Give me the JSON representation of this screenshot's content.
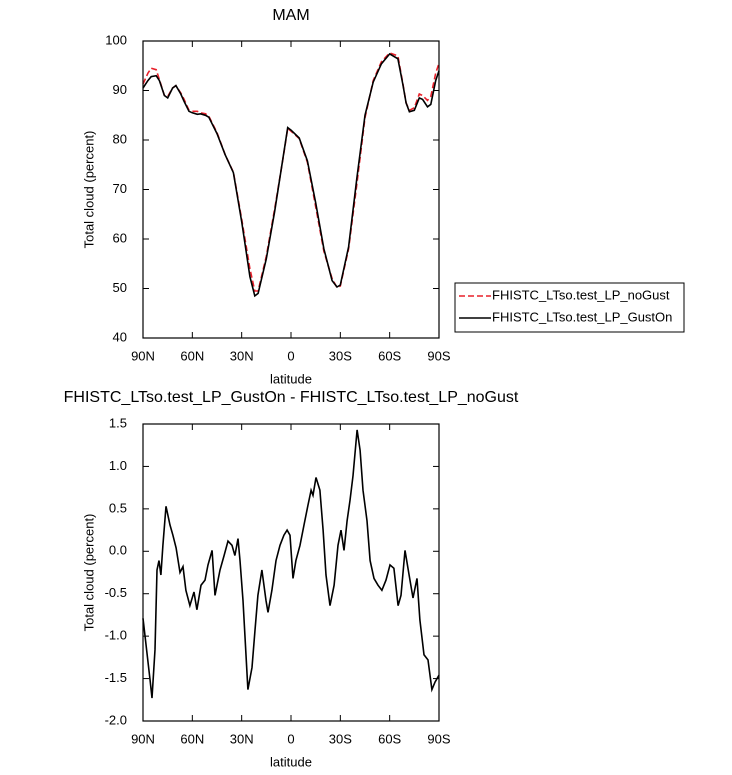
{
  "chart_data": [
    {
      "type": "line",
      "title": "MAM",
      "xlabel": "latitude",
      "ylabel": "Total cloud (percent)",
      "x": [
        90,
        87,
        85,
        82,
        80,
        77,
        75,
        72,
        70,
        67,
        65,
        62,
        60,
        57,
        55,
        52,
        50,
        45,
        40,
        35,
        30,
        25,
        22,
        20,
        15,
        10,
        5,
        2,
        0,
        -5,
        -10,
        -15,
        -20,
        -25,
        -28,
        -30,
        -35,
        -40,
        -45,
        -50,
        -55,
        -60,
        -65,
        -68,
        -70,
        -72,
        -75,
        -78,
        -80,
        -83,
        -85,
        -88,
        -90
      ],
      "xlim": [
        90,
        -90
      ],
      "xticks": [
        {
          "value": 90,
          "label": "90N"
        },
        {
          "value": 60,
          "label": "60N"
        },
        {
          "value": 30,
          "label": "30N"
        },
        {
          "value": 0,
          "label": "0"
        },
        {
          "value": -30,
          "label": "30S"
        },
        {
          "value": -60,
          "label": "60S"
        },
        {
          "value": -90,
          "label": "90S"
        }
      ],
      "ylim": [
        40,
        100
      ],
      "yticks": [
        40,
        50,
        60,
        70,
        80,
        90,
        100
      ],
      "legend_position": "outside-right",
      "series": [
        {
          "name": "FHISTC_LTso.test_LP_noGust",
          "color": "#e8202a",
          "line_style": "dashed",
          "values": [
            91.3,
            93.5,
            94.5,
            94.2,
            92.2,
            89,
            88.8,
            90.5,
            91,
            89.5,
            88.2,
            86,
            85.8,
            85.8,
            85.5,
            85.3,
            84.8,
            81.5,
            77,
            73.5,
            64,
            54,
            49.5,
            49.5,
            56.5,
            66,
            76,
            82.3,
            81.8,
            80.3,
            75.5,
            66.5,
            57.5,
            52,
            50.2,
            50.5,
            58,
            71,
            84.5,
            92,
            95.8,
            97.6,
            97,
            91.5,
            87.5,
            86,
            86.5,
            89.3,
            89,
            88,
            88.8,
            93.5,
            95.5
          ]
        },
        {
          "name": "FHISTC_LTso.test_LP_GustOn",
          "color": "#000000",
          "line_style": "solid",
          "values": [
            90.5,
            92,
            92.8,
            93,
            92,
            89,
            88.5,
            90.5,
            91,
            89.3,
            87.8,
            85.8,
            85.5,
            85.2,
            85.3,
            85,
            84.6,
            81.3,
            77,
            73.4,
            63.5,
            52.4,
            48.5,
            49,
            56,
            65.5,
            76.1,
            82.5,
            82,
            80.4,
            75.8,
            67.3,
            58,
            51.6,
            50.3,
            50.7,
            58.4,
            72.2,
            85,
            91.7,
            95.4,
            97.4,
            96.4,
            91.3,
            87.5,
            85.7,
            86,
            88.5,
            88.2,
            86.7,
            87.2,
            92,
            94
          ]
        }
      ]
    },
    {
      "type": "line",
      "title": "FHISTC_LTso.test_LP_GustOn - FHISTC_LTso.test_LP_noGust",
      "xlabel": "latitude",
      "ylabel": "Total cloud (percent)",
      "x": [
        90,
        85.7,
        84.5,
        82.7,
        81.5,
        80.3,
        79.1,
        77.9,
        76,
        73.6,
        71.8,
        69.9,
        67.5,
        65.7,
        63.9,
        61.5,
        59,
        57.2,
        54.7,
        52.3,
        50.5,
        48,
        46.2,
        43.2,
        40.7,
        38.3,
        35.9,
        34.1,
        32.2,
        31,
        29.2,
        26.2,
        23.7,
        21.9,
        20.1,
        17.7,
        15.2,
        14,
        11.6,
        9.1,
        6.7,
        4.3,
        2.4,
        0.6,
        -1.2,
        -3,
        -5.5,
        -7.9,
        -10.3,
        -12.2,
        -13.4,
        -15.2,
        -17.6,
        -19.5,
        -21.3,
        -23.7,
        -26.2,
        -28.6,
        -30.4,
        -32.2,
        -34.1,
        -35.9,
        -37.7,
        -40.2,
        -42,
        -43.8,
        -46.2,
        -48.1,
        -50.5,
        -52.9,
        -55.3,
        -57.8,
        -60.2,
        -62.6,
        -65.1,
        -66.9,
        -69.3,
        -71.8,
        -74.2,
        -76.6,
        -78.4,
        -80.9,
        -83.3,
        -85.7,
        -87.6,
        -90
      ],
      "xlim": [
        90,
        -90
      ],
      "xticks": [
        {
          "value": 90,
          "label": "90N"
        },
        {
          "value": 60,
          "label": "60N"
        },
        {
          "value": 30,
          "label": "30N"
        },
        {
          "value": 0,
          "label": "0"
        },
        {
          "value": -30,
          "label": "30S"
        },
        {
          "value": -60,
          "label": "60S"
        },
        {
          "value": -90,
          "label": "90S"
        }
      ],
      "ylim": [
        -2,
        1.5
      ],
      "yticks": [
        {
          "value": -2,
          "label": "-2.0"
        },
        -1.5,
        {
          "value": -1,
          "label": "-1.0"
        },
        -0.5,
        {
          "value": 0,
          "label": "0.0"
        },
        0.5,
        {
          "value": 1,
          "label": "1.0"
        },
        1.5
      ],
      "color": "#000000",
      "values": [
        -0.79,
        -1.52,
        -1.73,
        -1.16,
        -0.22,
        -0.11,
        -0.28,
        0.07,
        0.53,
        0.31,
        0.19,
        0.04,
        -0.25,
        -0.18,
        -0.46,
        -0.64,
        -0.48,
        -0.69,
        -0.4,
        -0.34,
        -0.16,
        0.01,
        -0.52,
        -0.22,
        -0.05,
        0.12,
        0.07,
        -0.05,
        0.15,
        -0.11,
        -0.58,
        -1.63,
        -1.37,
        -0.93,
        -0.52,
        -0.22,
        -0.58,
        -0.72,
        -0.46,
        -0.11,
        0.07,
        0.19,
        0.25,
        0.19,
        -0.32,
        -0.11,
        0.07,
        0.31,
        0.54,
        0.72,
        0.66,
        0.87,
        0.72,
        0.25,
        -0.28,
        -0.64,
        -0.4,
        0.07,
        0.25,
        0.01,
        0.36,
        0.6,
        0.89,
        1.43,
        1.19,
        0.72,
        0.36,
        -0.11,
        -0.32,
        -0.4,
        -0.46,
        -0.34,
        -0.16,
        -0.2,
        -0.64,
        -0.52,
        0.01,
        -0.28,
        -0.55,
        -0.32,
        -0.81,
        -1.22,
        -1.28,
        -1.63,
        -1.54,
        -1.46
      ]
    }
  ]
}
